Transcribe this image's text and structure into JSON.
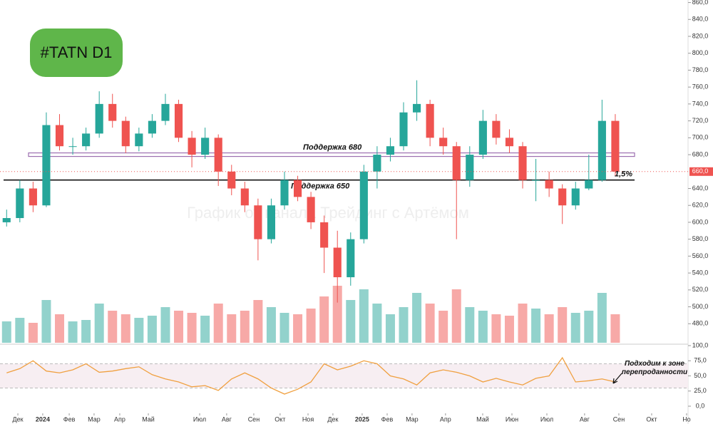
{
  "chart_data": [
    {
      "type": "candlestick",
      "title": "#TATN D1",
      "watermark": "График от канала Трейдинг с Артёмом",
      "xlim": [
        0,
        52
      ],
      "xticks": [
        {
          "value": 1.35,
          "label": "Дек"
        },
        {
          "value": 3.23,
          "label": "2024"
        },
        {
          "value": 5.23,
          "label": "Фев"
        },
        {
          "value": 7.11,
          "label": "Мар"
        },
        {
          "value": 9.05,
          "label": "Апр"
        },
        {
          "value": 11.21,
          "label": "Май"
        },
        {
          "value": 15.09,
          "label": "Июл"
        },
        {
          "value": 17.13,
          "label": "Авг"
        },
        {
          "value": 19.18,
          "label": "Сен"
        },
        {
          "value": 21.17,
          "label": "Окт"
        },
        {
          "value": 23.28,
          "label": "Ноя"
        },
        {
          "value": 25.16,
          "label": "Дек"
        },
        {
          "value": 27.37,
          "label": "2025"
        },
        {
          "value": 29.26,
          "label": "Фев"
        },
        {
          "value": 31.14,
          "label": "Мар"
        },
        {
          "value": 33.67,
          "label": "Апр"
        },
        {
          "value": 36.48,
          "label": "Май"
        },
        {
          "value": 38.69,
          "label": "Июн"
        },
        {
          "value": 41.33,
          "label": "Июл"
        },
        {
          "value": 44.18,
          "label": "Авг"
        },
        {
          "value": 46.77,
          "label": "Сен"
        },
        {
          "value": 49.25,
          "label": "Окт"
        },
        {
          "value": 51.89,
          "label": "Но"
        }
      ],
      "ylim": [
        460,
        863
      ],
      "yticks": [
        {
          "value": 480,
          "label": "480,0"
        },
        {
          "value": 500,
          "label": "500,0"
        },
        {
          "value": 520,
          "label": "520,0"
        },
        {
          "value": 540,
          "label": "540,0"
        },
        {
          "value": 560,
          "label": "560,0"
        },
        {
          "value": 580,
          "label": "580,0"
        },
        {
          "value": 600,
          "label": "600,0"
        },
        {
          "value": 620,
          "label": "620,0"
        },
        {
          "value": 640,
          "label": "640,0"
        },
        {
          "value": 680,
          "label": "680,0"
        },
        {
          "value": 700,
          "label": "700,0"
        },
        {
          "value": 720,
          "label": "720,0"
        },
        {
          "value": 740,
          "label": "740,0"
        },
        {
          "value": 760,
          "label": "760,0"
        },
        {
          "value": 780,
          "label": "780,0"
        },
        {
          "value": 800,
          "label": "800,0"
        },
        {
          "value": 820,
          "label": "820,0"
        },
        {
          "value": 840,
          "label": "840,0"
        },
        {
          "value": 860,
          "label": "860,0"
        }
      ],
      "last_price": {
        "value": 660,
        "label": "660,0"
      },
      "up_color": "#26a69a",
      "down_color": "#ef5350",
      "levels": [
        {
          "label": "Поддержка 680",
          "value": 680,
          "color": "#9c6fb0"
        },
        {
          "label": "Поддержка 650",
          "value": 650,
          "color": "#000000"
        }
      ],
      "annotation": "1,5%",
      "ohlc": [
        [
          600,
          615,
          595,
          605
        ],
        [
          605,
          650,
          600,
          640
        ],
        [
          640,
          648,
          612,
          620
        ],
        [
          620,
          730,
          618,
          715
        ],
        [
          715,
          728,
          685,
          690
        ],
        [
          690,
          700,
          680,
          690
        ],
        [
          690,
          712,
          685,
          705
        ],
        [
          705,
          755,
          700,
          740
        ],
        [
          740,
          752,
          712,
          720
        ],
        [
          720,
          725,
          682,
          690
        ],
        [
          690,
          712,
          684,
          705
        ],
        [
          705,
          728,
          700,
          720
        ],
        [
          720,
          752,
          715,
          740
        ],
        [
          740,
          745,
          695,
          700
        ],
        [
          700,
          708,
          665,
          680
        ],
        [
          680,
          712,
          675,
          700
        ],
        [
          700,
          704,
          643,
          660
        ],
        [
          660,
          668,
          632,
          640
        ],
        [
          640,
          648,
          612,
          620
        ],
        [
          620,
          628,
          555,
          580
        ],
        [
          580,
          628,
          575,
          620
        ],
        [
          620,
          660,
          615,
          650
        ],
        [
          650,
          655,
          625,
          630
        ],
        [
          630,
          636,
          592,
          600
        ],
        [
          600,
          608,
          540,
          570
        ],
        [
          570,
          590,
          505,
          535
        ],
        [
          535,
          588,
          525,
          580
        ],
        [
          580,
          668,
          575,
          660
        ],
        [
          660,
          690,
          640,
          680
        ],
        [
          680,
          700,
          672,
          690
        ],
        [
          690,
          742,
          685,
          730
        ],
        [
          730,
          768,
          720,
          740
        ],
        [
          740,
          745,
          690,
          700
        ],
        [
          700,
          712,
          680,
          690
        ],
        [
          690,
          695,
          580,
          650
        ],
        [
          650,
          690,
          642,
          680
        ],
        [
          680,
          733,
          675,
          720
        ],
        [
          720,
          728,
          692,
          700
        ],
        [
          700,
          710,
          682,
          690
        ],
        [
          690,
          695,
          640,
          650
        ],
        [
          650,
          675,
          625,
          650
        ],
        [
          650,
          660,
          630,
          640
        ],
        [
          640,
          645,
          598,
          620
        ],
        [
          620,
          648,
          615,
          640
        ],
        [
          640,
          680,
          638,
          650
        ],
        [
          650,
          745,
          648,
          720
        ],
        [
          720,
          728,
          655,
          660
        ]
      ],
      "volume": [
        30,
        35,
        28,
        60,
        40,
        30,
        32,
        55,
        45,
        40,
        35,
        38,
        50,
        45,
        42,
        38,
        55,
        40,
        45,
        60,
        50,
        42,
        40,
        48,
        65,
        80,
        60,
        75,
        55,
        40,
        50,
        70,
        55,
        45,
        75,
        50,
        45,
        40,
        38,
        55,
        48,
        40,
        50,
        42,
        45,
        70,
        40
      ]
    },
    {
      "type": "line",
      "annotation": "Подходим к зоне перепроданности",
      "ylim": [
        0,
        100
      ],
      "yticks": [
        {
          "value": 0,
          "label": "0,0"
        },
        {
          "value": 25,
          "label": "25,0"
        },
        {
          "value": 50,
          "label": "50,0"
        },
        {
          "value": 75,
          "label": "75,0"
        },
        {
          "value": 100,
          "label": "100,0"
        }
      ],
      "levels": [
        30,
        70
      ],
      "color": "#f0a040",
      "values": [
        55,
        62,
        75,
        58,
        55,
        60,
        70,
        56,
        58,
        62,
        65,
        52,
        45,
        40,
        32,
        34,
        26,
        45,
        55,
        45,
        30,
        20,
        28,
        40,
        70,
        60,
        66,
        75,
        70,
        50,
        45,
        35,
        55,
        60,
        56,
        50,
        40,
        46,
        40,
        35,
        46,
        50,
        80,
        40,
        42,
        45,
        40
      ]
    }
  ]
}
